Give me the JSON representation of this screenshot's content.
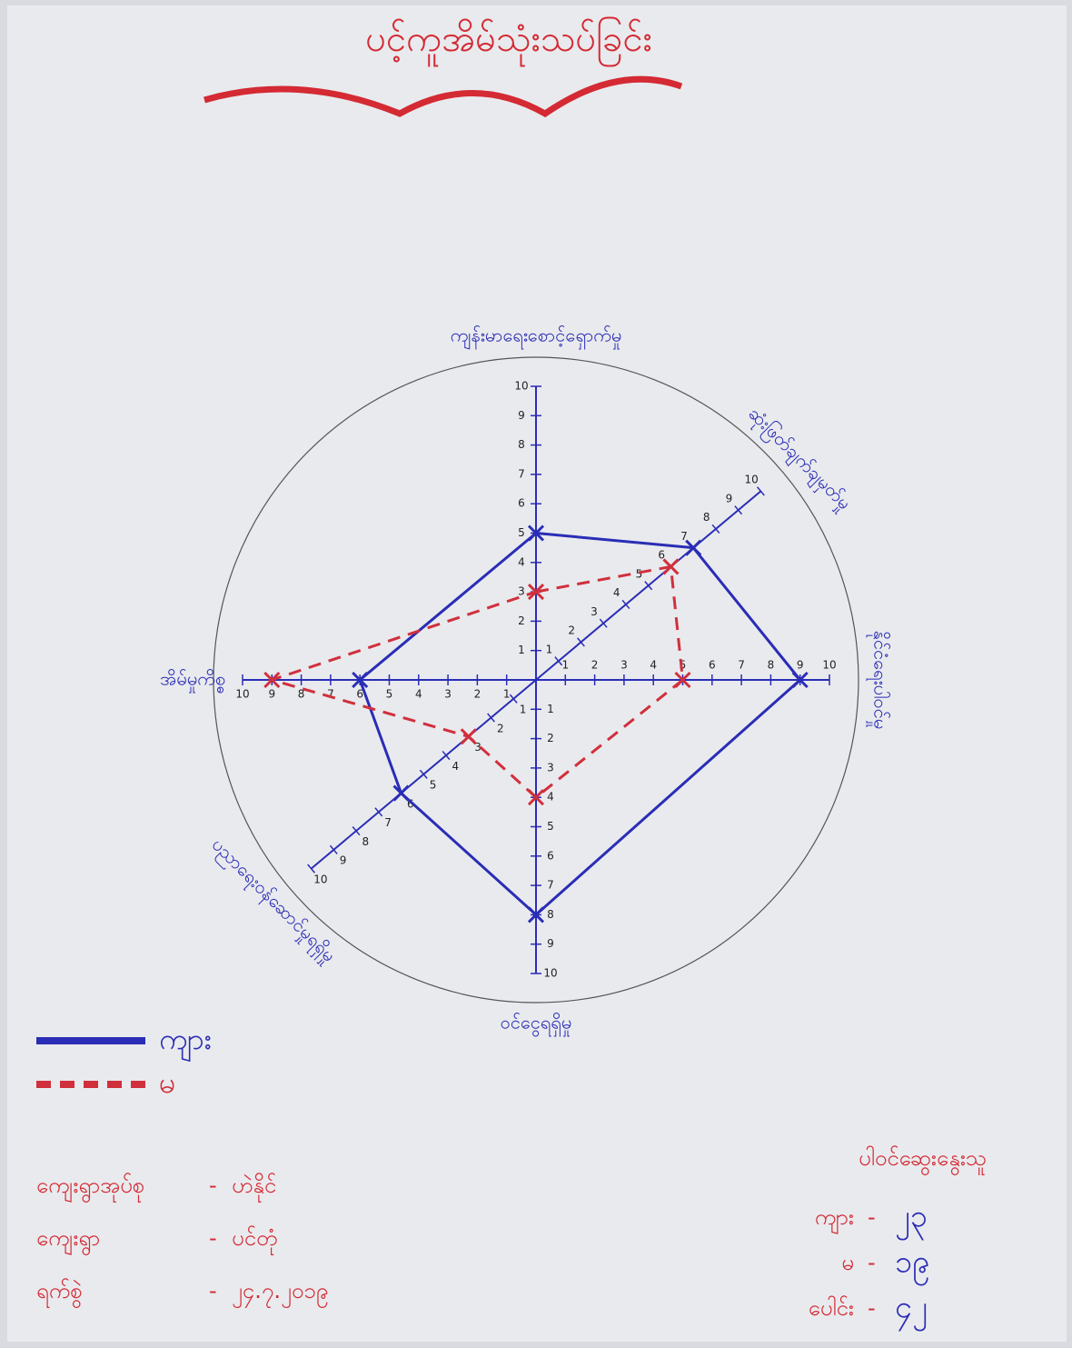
{
  "chart_data": {
    "type": "radar",
    "title": "ပင့်ကူအိမ်သုံးသပ်ခြင်း",
    "categories": [
      "ကျန်းမာရေးစောင့်ရှောက်မှု",
      "ဆုံးဖြတ်ချက်ချမှတ်မှု",
      "နိုင်ငံရေးပါဝင်မှု",
      "ဝင်ငွေရရှိမှု",
      "ပညာရေးဝန်ဆောင်မှုရရှိမှု",
      "အိမ်မှုကိစ္စ"
    ],
    "series": [
      {
        "name": "ကျား",
        "color": "#2a2db5",
        "line_style": "solid",
        "values": [
          5,
          7,
          9,
          8,
          6,
          6
        ]
      },
      {
        "name": "မ",
        "color": "#d0303c",
        "line_style": "dashed",
        "values": [
          3,
          6,
          5,
          4,
          3,
          9
        ]
      }
    ],
    "rlim": [
      0,
      10
    ],
    "rticks": [
      1,
      2,
      3,
      4,
      5,
      6,
      7,
      8,
      9,
      10
    ],
    "notes": [
      {
        "label": "ကျေးရွာအုပ်စု",
        "value": "ဟဲနိုင်"
      },
      {
        "label": "ကျေးရွာ",
        "value": "ပင်တုံ"
      },
      {
        "label": "ရက်စွဲ",
        "value": "၂၄.၇.၂၀၁၉"
      }
    ],
    "participants": {
      "title": "ပါဝင်ဆွေးနွေးသူ",
      "rows": [
        {
          "label": "ကျား",
          "value": "၂၃"
        },
        {
          "label": "မ",
          "value": "၁၉"
        },
        {
          "label": "ပေါင်း",
          "value": "၄၂"
        }
      ]
    }
  }
}
